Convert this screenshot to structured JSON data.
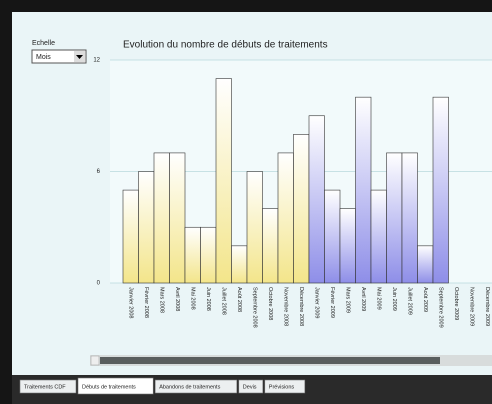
{
  "ui": {
    "scale_label": "Echelle",
    "scale_value": "Mois",
    "tabs": [
      "Traitements CDF",
      "Débuts de traitements",
      "Abandons de traitements",
      "Devis",
      "Prévisions"
    ],
    "active_tab": 1
  },
  "chart_data": {
    "type": "bar",
    "title": "Evolution du nombre de débuts de traitements",
    "categories": [
      "Janvier 2008",
      "Février 2008",
      "Mars 2008",
      "Avril 2008",
      "Mai 2008",
      "Juin 2008",
      "Juillet 2008",
      "Août 2008",
      "Septembre 2008",
      "Octobre 2008",
      "Novembre 2008",
      "Décembre 2008",
      "Janvier 2009",
      "Février 2009",
      "Mars 2009",
      "Avril 2009",
      "Mai 2009",
      "Juin 2009",
      "Juillet 2009",
      "Août 2009",
      "Septembre 2009",
      "Octobre 2009",
      "Novembre 2009",
      "Décembre 2009"
    ],
    "values": [
      5,
      6,
      7,
      7,
      3,
      3,
      11,
      2,
      6,
      4,
      7,
      8,
      9,
      5,
      4,
      10,
      5,
      7,
      7,
      2,
      10,
      null,
      null,
      null
    ],
    "colors": [
      "#f3e58a",
      "#f3e58a",
      "#f3e58a",
      "#f3e58a",
      "#f3e58a",
      "#f3e58a",
      "#f3e58a",
      "#f3e58a",
      "#f3e58a",
      "#f3e58a",
      "#f3e58a",
      "#f3e58a",
      "#8e8ee8",
      "#8e8ee8",
      "#8e8ee8",
      "#8e8ee8",
      "#8e8ee8",
      "#8e8ee8",
      "#8e8ee8",
      "#8e8ee8",
      "#8e8ee8",
      "#8e8ee8",
      "#8e8ee8",
      "#8e8ee8"
    ],
    "ylim": [
      0,
      12
    ],
    "yticks": [
      0,
      6,
      12
    ],
    "grid": true
  }
}
